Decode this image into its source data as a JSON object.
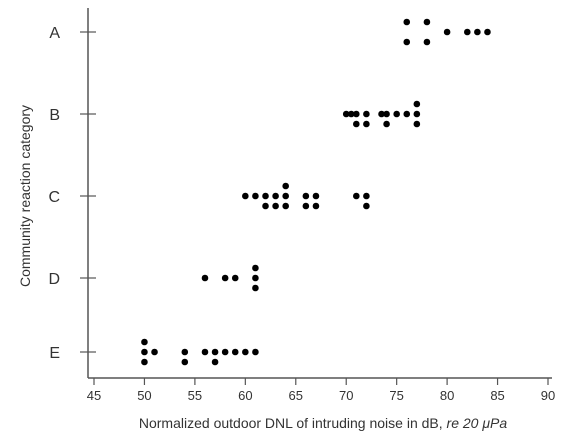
{
  "chart_data": {
    "type": "scatter",
    "title": "",
    "xlabel": "Normalized outdoor DNL of intruding noise in dB, ",
    "xlabel_italic": "re 20 μPa",
    "ylabel": "Community reaction category",
    "xlim": [
      45,
      90
    ],
    "x_ticks": [
      "45",
      "50",
      "55",
      "60",
      "65",
      "70",
      "75",
      "80",
      "85",
      "90"
    ],
    "categories": [
      "A",
      "B",
      "C",
      "D",
      "E"
    ],
    "grid": false,
    "legend": "none",
    "point_color": "#000000",
    "points": [
      {
        "category": "A",
        "x": 76,
        "offset": 1
      },
      {
        "category": "A",
        "x": 76,
        "offset": -1
      },
      {
        "category": "A",
        "x": 78,
        "offset": 1
      },
      {
        "category": "A",
        "x": 78,
        "offset": -1
      },
      {
        "category": "A",
        "x": 80,
        "offset": 0
      },
      {
        "category": "A",
        "x": 82,
        "offset": 0
      },
      {
        "category": "A",
        "x": 83,
        "offset": 0
      },
      {
        "category": "A",
        "x": 84,
        "offset": 0
      },
      {
        "category": "B",
        "x": 70,
        "offset": 0
      },
      {
        "category": "B",
        "x": 70.5,
        "offset": 0
      },
      {
        "category": "B",
        "x": 71,
        "offset": 0
      },
      {
        "category": "B",
        "x": 71,
        "offset": -1
      },
      {
        "category": "B",
        "x": 72,
        "offset": 0
      },
      {
        "category": "B",
        "x": 72,
        "offset": -1
      },
      {
        "category": "B",
        "x": 73.5,
        "offset": 0
      },
      {
        "category": "B",
        "x": 74,
        "offset": 0
      },
      {
        "category": "B",
        "x": 74,
        "offset": -1
      },
      {
        "category": "B",
        "x": 75,
        "offset": 0
      },
      {
        "category": "B",
        "x": 76,
        "offset": 0
      },
      {
        "category": "B",
        "x": 77,
        "offset": 0
      },
      {
        "category": "B",
        "x": 77,
        "offset": 1
      },
      {
        "category": "B",
        "x": 77,
        "offset": -1
      },
      {
        "category": "C",
        "x": 60,
        "offset": 0
      },
      {
        "category": "C",
        "x": 61,
        "offset": 0
      },
      {
        "category": "C",
        "x": 62,
        "offset": 0
      },
      {
        "category": "C",
        "x": 62,
        "offset": -1
      },
      {
        "category": "C",
        "x": 63,
        "offset": 0
      },
      {
        "category": "C",
        "x": 63,
        "offset": -1
      },
      {
        "category": "C",
        "x": 64,
        "offset": 1
      },
      {
        "category": "C",
        "x": 64,
        "offset": 0
      },
      {
        "category": "C",
        "x": 64,
        "offset": -1
      },
      {
        "category": "C",
        "x": 66,
        "offset": 0
      },
      {
        "category": "C",
        "x": 66,
        "offset": -1
      },
      {
        "category": "C",
        "x": 67,
        "offset": 0
      },
      {
        "category": "C",
        "x": 67,
        "offset": -1
      },
      {
        "category": "C",
        "x": 71,
        "offset": 0
      },
      {
        "category": "C",
        "x": 72,
        "offset": 0
      },
      {
        "category": "C",
        "x": 72,
        "offset": -1
      },
      {
        "category": "D",
        "x": 56,
        "offset": 0
      },
      {
        "category": "D",
        "x": 58,
        "offset": 0
      },
      {
        "category": "D",
        "x": 59,
        "offset": 0
      },
      {
        "category": "D",
        "x": 61,
        "offset": 1
      },
      {
        "category": "D",
        "x": 61,
        "offset": 0
      },
      {
        "category": "D",
        "x": 61,
        "offset": -1
      },
      {
        "category": "E",
        "x": 50,
        "offset": 1
      },
      {
        "category": "E",
        "x": 50,
        "offset": 0
      },
      {
        "category": "E",
        "x": 50,
        "offset": -1
      },
      {
        "category": "E",
        "x": 51,
        "offset": 0
      },
      {
        "category": "E",
        "x": 54,
        "offset": 0
      },
      {
        "category": "E",
        "x": 54,
        "offset": -1
      },
      {
        "category": "E",
        "x": 56,
        "offset": 0
      },
      {
        "category": "E",
        "x": 57,
        "offset": 0
      },
      {
        "category": "E",
        "x": 57,
        "offset": -1
      },
      {
        "category": "E",
        "x": 58,
        "offset": 0
      },
      {
        "category": "E",
        "x": 59,
        "offset": 0
      },
      {
        "category": "E",
        "x": 60,
        "offset": 0
      },
      {
        "category": "E",
        "x": 61,
        "offset": 0
      }
    ]
  }
}
